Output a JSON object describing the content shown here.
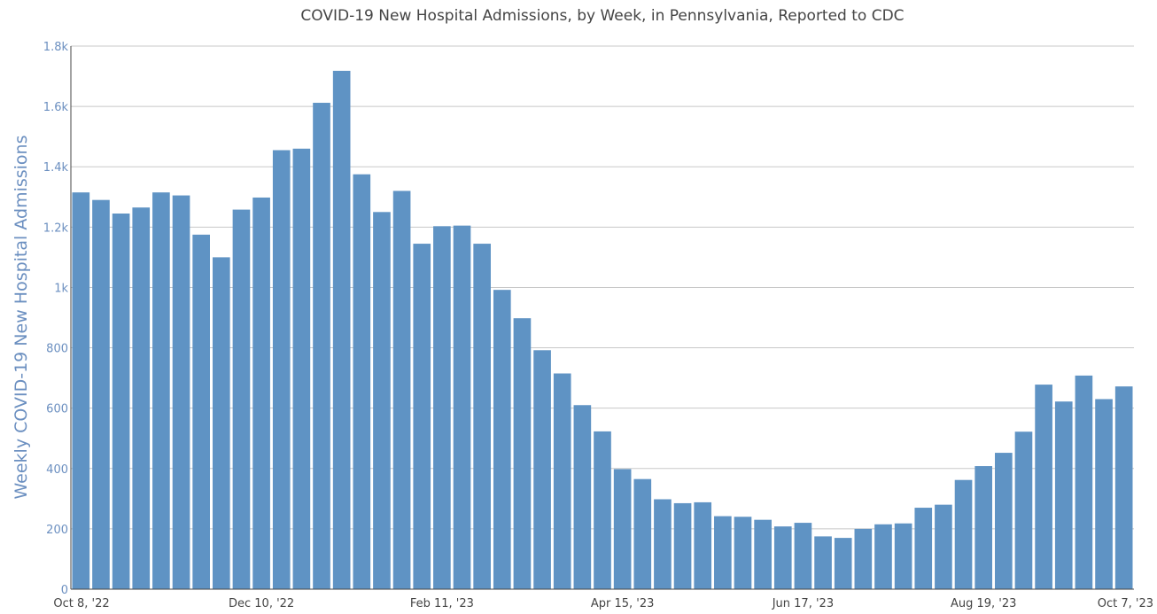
{
  "chart_data": {
    "type": "bar",
    "title": "COVID-19 New Hospital Admissions, by Week, in Pennsylvania, Reported to CDC",
    "ylabel": "Weekly COVID-19 New Hospital Admissions",
    "xlabel": "",
    "ylim": [
      0,
      1800
    ],
    "yticks": [
      {
        "value": 0,
        "label": "0"
      },
      {
        "value": 200,
        "label": "200"
      },
      {
        "value": 400,
        "label": "400"
      },
      {
        "value": 600,
        "label": "600"
      },
      {
        "value": 800,
        "label": "800"
      },
      {
        "value": 1000,
        "label": "1k"
      },
      {
        "value": 1200,
        "label": "1.2k"
      },
      {
        "value": 1400,
        "label": "1.4k"
      },
      {
        "value": 1600,
        "label": "1.6k"
      },
      {
        "value": 1800,
        "label": "1.8k"
      }
    ],
    "xticks": [
      {
        "index": 0,
        "label": "Oct 8, '22"
      },
      {
        "index": 9,
        "label": "Dec 10, '22"
      },
      {
        "index": 18,
        "label": "Feb 11, '23"
      },
      {
        "index": 27,
        "label": "Apr 15, '23"
      },
      {
        "index": 36,
        "label": "Jun 17, '23"
      },
      {
        "index": 45,
        "label": "Aug 19, '23"
      },
      {
        "index": 52,
        "label": "Oct 7, '23"
      }
    ],
    "values": [
      1315,
      1290,
      1245,
      1265,
      1315,
      1305,
      1175,
      1100,
      1258,
      1298,
      1455,
      1460,
      1612,
      1718,
      1375,
      1250,
      1320,
      1145,
      1203,
      1205,
      1145,
      992,
      898,
      792,
      715,
      610,
      523,
      398,
      365,
      298,
      285,
      288,
      242,
      240,
      230,
      208,
      220,
      175,
      170,
      200,
      215,
      218,
      270,
      280,
      362,
      408,
      452,
      522,
      678,
      622,
      708,
      630,
      672
    ],
    "bar_color": "#5f93c4",
    "grid": true,
    "legend": "none"
  }
}
